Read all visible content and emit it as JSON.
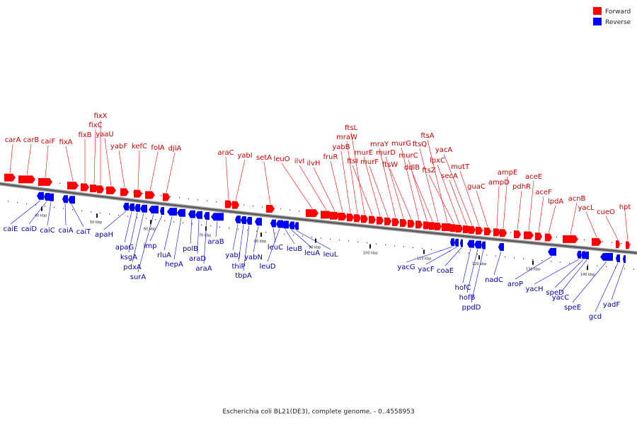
{
  "legend": {
    "forward_label": "Forward",
    "reverse_label": "Reverse"
  },
  "colors": {
    "forward": "#ff0000",
    "reverse": "#0000ff",
    "forward_text": "#cc0000",
    "reverse_text": "#0000aa",
    "backbone": "#555555"
  },
  "caption": "Escherichia coli BL21(DE3), complete genome. - 0..4558953",
  "scale_ticks": [
    "40 kbp",
    "50 kbp",
    "60 kbp",
    "70 kbp",
    "80 kbp",
    "90 kbp",
    "100 kbp",
    "110 kbp",
    "120 kbp",
    "130 kbp",
    "140 kbp"
  ],
  "forward_genes": [
    "carA",
    "carB",
    "caiF",
    "fixA",
    "fixB",
    "fixC",
    "fixX",
    "yaaU",
    "yabF",
    "kefC",
    "folA",
    "djlA",
    "araC",
    "yabI",
    "setA",
    "leuO",
    "ilvI",
    "ilvH",
    "fruR",
    "yabB",
    "mraW",
    "ftsL",
    "ftsI",
    "murE",
    "murF",
    "mraY",
    "murD",
    "ftsW",
    "murG",
    "murC",
    "ddlB",
    "ftsQ",
    "ftsA",
    "ftsZ",
    "lpxC",
    "secA",
    "yacA",
    "mutT",
    "guaC",
    "ampD",
    "ampE",
    "pdhR",
    "aceE",
    "aceF",
    "lpdA",
    "acnB",
    "yacL",
    "cueO",
    "hpt"
  ],
  "reverse_genes": [
    "caiE",
    "caiD",
    "caiC",
    "caiA",
    "caiT",
    "apaH",
    "apaG",
    "ksgA",
    "pdxA",
    "surA",
    "imp",
    "rluA",
    "hepA",
    "polB",
    "araD",
    "araA",
    "araB",
    "yabJ",
    "thiP",
    "tbpA",
    "yabN",
    "leuC",
    "leuD",
    "leuB",
    "leuA",
    "leuL",
    "yacG",
    "yacF",
    "coaE",
    "hofC",
    "hofB",
    "ppdD",
    "nadC",
    "aroP",
    "yacH",
    "speD",
    "yacC",
    "speE",
    "gcd",
    "yadF"
  ]
}
